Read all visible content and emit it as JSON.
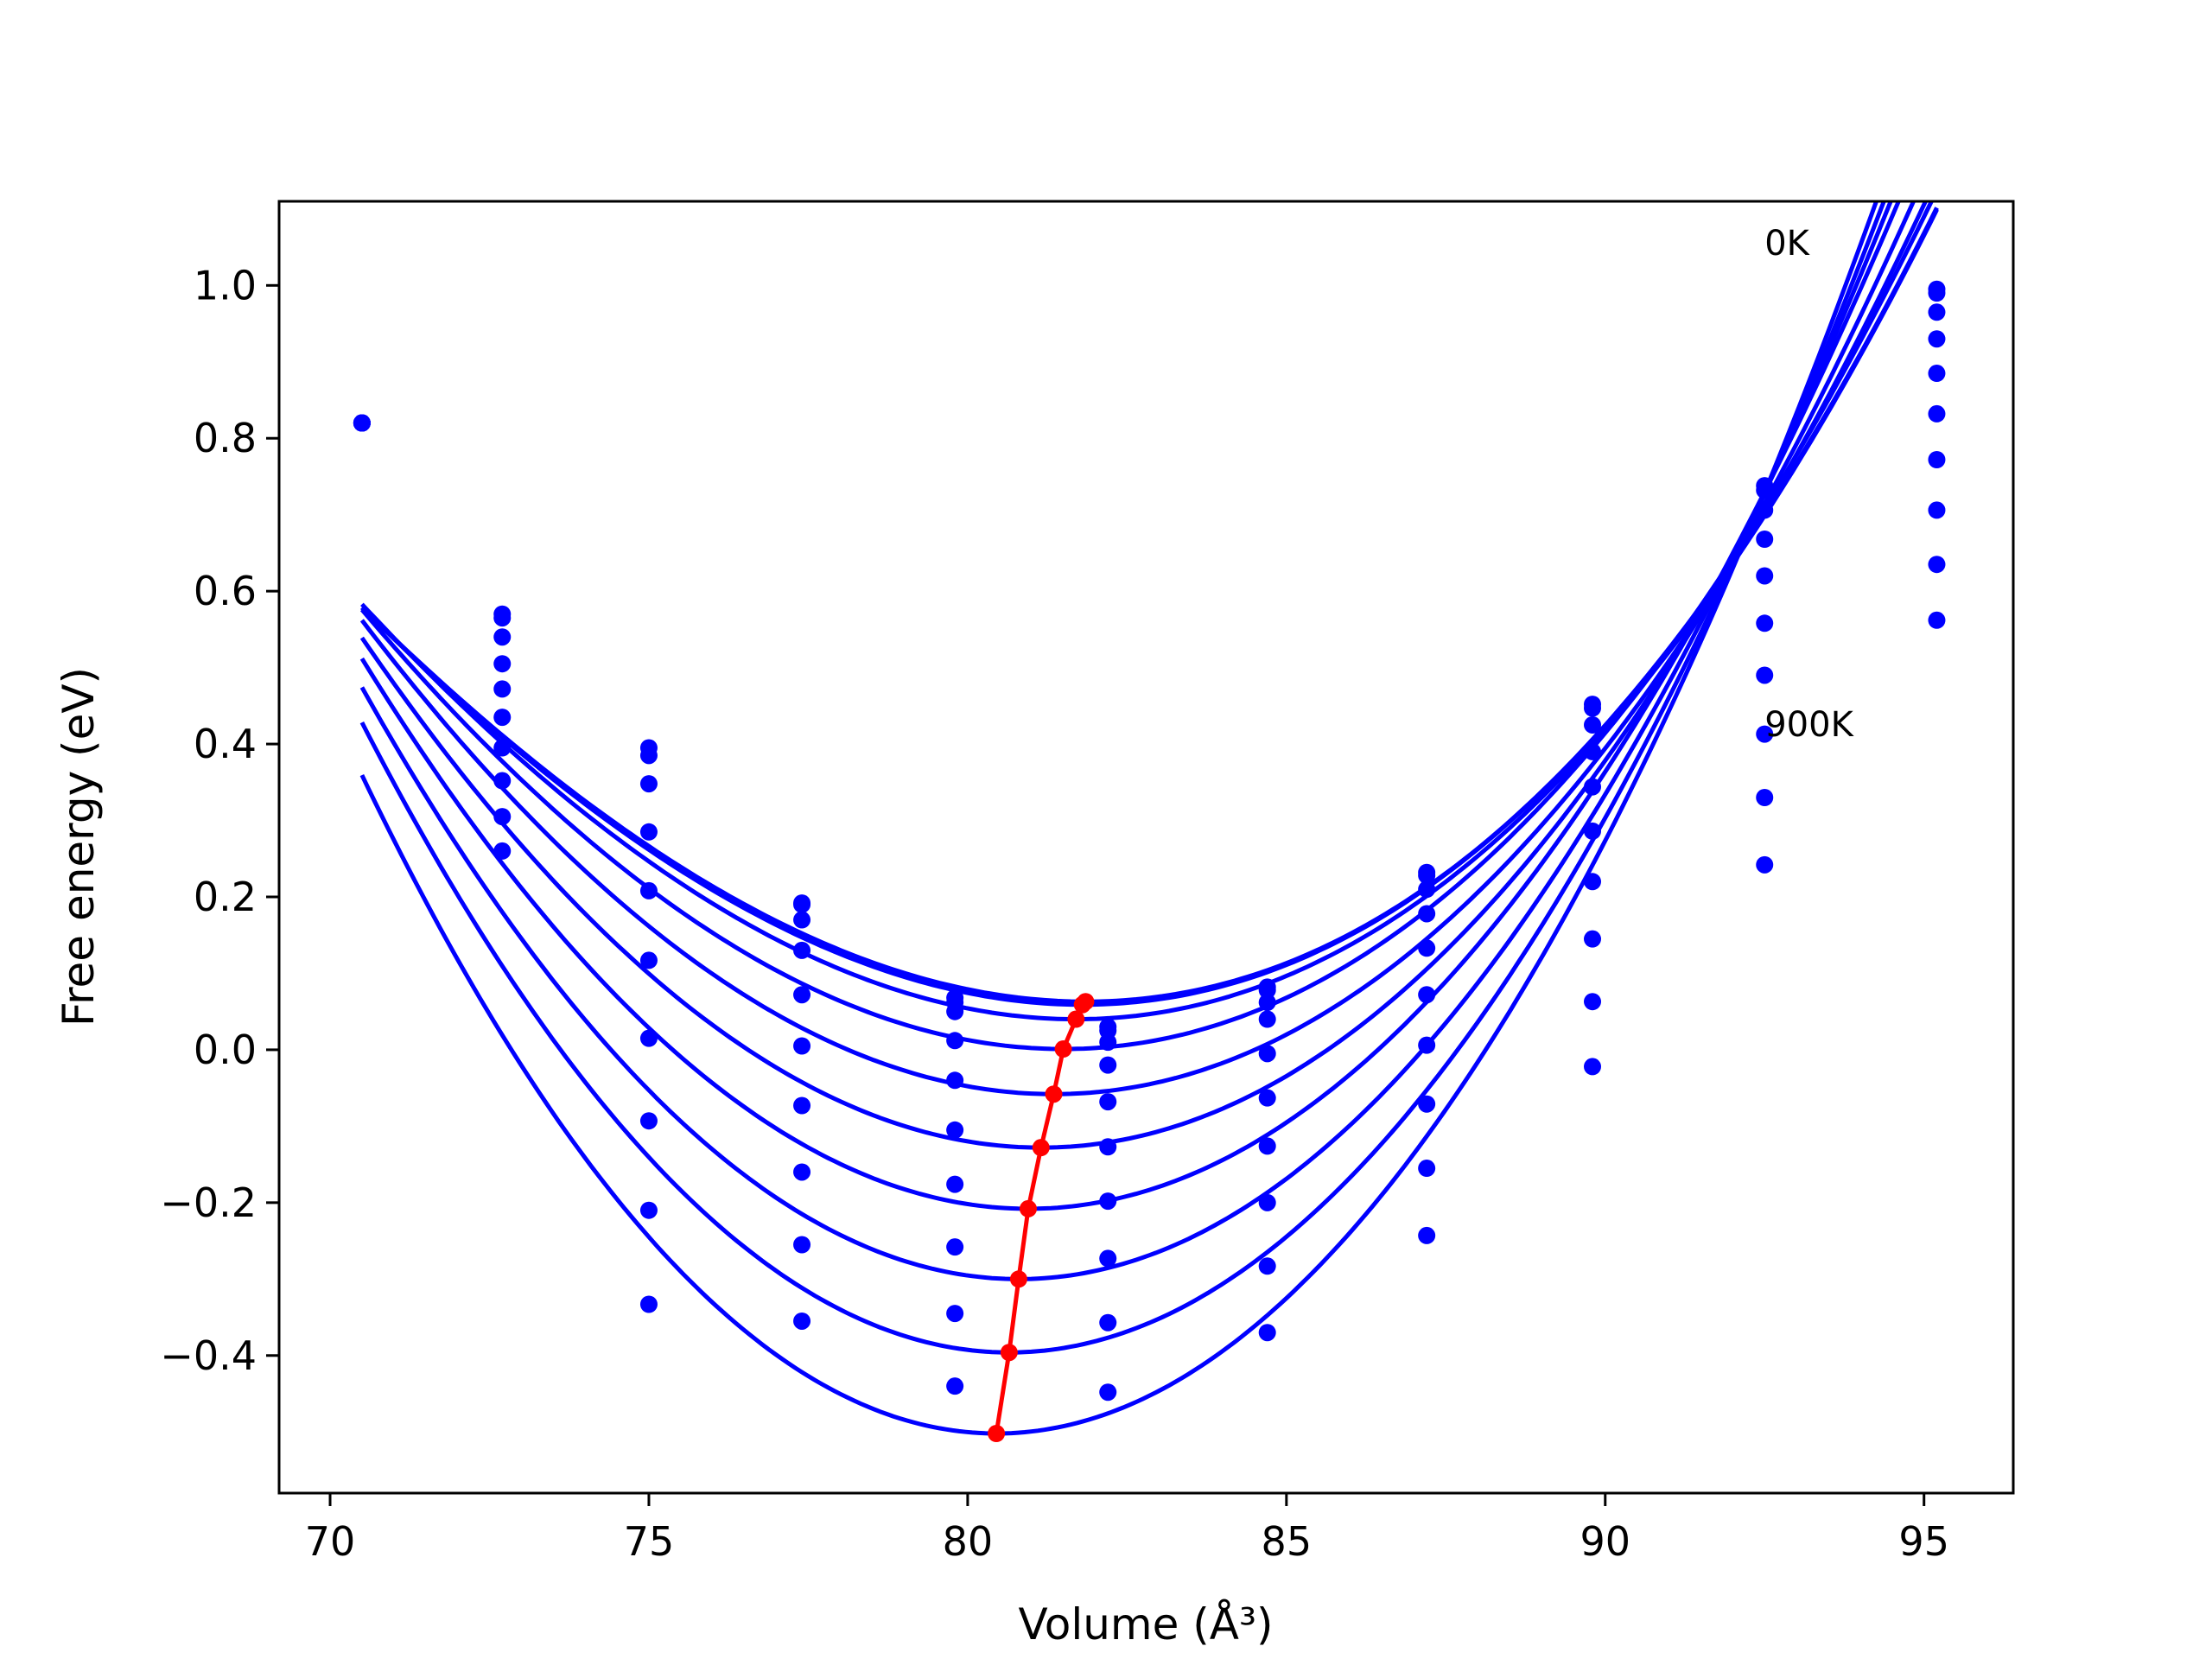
{
  "chart_data": {
    "type": "scatter",
    "title": "",
    "xlabel": "Volume (Å³)",
    "ylabel": "Free energy (eV)",
    "xlim": [
      69.2,
      96.4
    ],
    "ylim": [
      -0.58,
      1.11
    ],
    "xticks": [
      70,
      75,
      80,
      85,
      90,
      95
    ],
    "xtick_labels": [
      "70",
      "75",
      "80",
      "85",
      "90",
      "95"
    ],
    "yticks": [
      -0.4,
      -0.2,
      0.0,
      0.2,
      0.4,
      0.6,
      0.8,
      1.0
    ],
    "ytick_labels": [
      "−0.4",
      "−0.2",
      "0.0",
      "0.2",
      "0.4",
      "0.6",
      "0.8",
      "1.0"
    ],
    "grid": false,
    "annotations": [
      {
        "text": "0K",
        "x": 92.5,
        "y": 1.04
      },
      {
        "text": "900K",
        "x": 92.5,
        "y": 0.41
      }
    ],
    "colors": {
      "fit_curves": "#0000ff",
      "points": "#0000ff",
      "minimum_path": "#ff0000",
      "axes": "#000000"
    },
    "sample_volumes": [
      70.5,
      72.7,
      75.0,
      77.4,
      79.8,
      82.2,
      84.7,
      87.2,
      89.8,
      92.5,
      95.2
    ],
    "fit_x_range": [
      70.5,
      95.2
    ],
    "series": [
      {
        "V0": 81.85,
        "F0": 0.063,
        "a": 0.00484,
        "b": 7.4e-05,
        "points": [
          0.82,
          0.565,
          0.395,
          0.19,
          0.068,
          0.03,
          0.082,
          0.232,
          0.452,
          0.738,
          0.995
        ]
      },
      {
        "V0": 81.8,
        "F0": 0.059,
        "a": 0.00486,
        "b": 7e-05,
        "points": [
          0.82,
          0.57,
          0.385,
          0.192,
          0.062,
          0.025,
          0.078,
          0.228,
          0.447,
          0.732,
          0.99
        ]
      },
      {
        "V0": 81.7,
        "F0": 0.04,
        "a": 0.005,
        "b": 6e-05,
        "points": [
          0.82,
          0.54,
          0.348,
          0.17,
          0.05,
          0.01,
          0.062,
          0.21,
          0.425,
          0.706,
          0.965
        ]
      },
      {
        "V0": 81.5,
        "F0": 0.001,
        "a": 0.0053,
        "b": 5e-05,
        "points": [
          0.82,
          0.505,
          0.285,
          0.13,
          0.012,
          -0.02,
          0.04,
          0.178,
          0.39,
          0.668,
          0.93
        ]
      },
      {
        "V0": 81.35,
        "F0": -0.058,
        "a": 0.0057,
        "b": 4e-05,
        "points": [
          0.82,
          0.472,
          0.208,
          0.072,
          -0.04,
          -0.068,
          -0.005,
          0.133,
          0.344,
          0.62,
          0.885
        ]
      },
      {
        "V0": 81.15,
        "F0": -0.128,
        "a": 0.0062,
        "b": 3e-05,
        "points": [
          0.82,
          0.435,
          0.117,
          0.005,
          -0.105,
          -0.127,
          -0.063,
          0.072,
          0.286,
          0.558,
          0.832
        ]
      },
      {
        "V0": 80.95,
        "F0": -0.208,
        "a": 0.0068,
        "b": 2e-05,
        "points": [
          0.82,
          0.395,
          0.015,
          -0.073,
          -0.176,
          -0.198,
          -0.126,
          0.006,
          0.22,
          0.49,
          0.772
        ]
      },
      {
        "V0": 80.8,
        "F0": -0.3,
        "a": 0.0074,
        "b": 1e-05,
        "points": [
          0.82,
          0.352,
          -0.093,
          -0.16,
          -0.258,
          -0.273,
          -0.2,
          -0.071,
          0.145,
          0.413,
          0.706
        ]
      },
      {
        "V0": 80.65,
        "F0": -0.396,
        "a": 0.008,
        "b": 0.0,
        "points": [
          0.82,
          0.305,
          -0.21,
          -0.255,
          -0.345,
          -0.357,
          -0.283,
          -0.155,
          0.063,
          0.33,
          0.635
        ]
      },
      {
        "V0": 80.45,
        "F0": -0.502,
        "a": 0.0086,
        "b": -1e-05,
        "points": [
          0.82,
          0.26,
          -0.333,
          -0.355,
          -0.44,
          -0.448,
          -0.37,
          -0.243,
          -0.022,
          0.242,
          0.562
        ]
      }
    ],
    "minimum_path": {
      "x": [
        81.85,
        81.8,
        81.7,
        81.5,
        81.35,
        81.15,
        80.95,
        80.8,
        80.65,
        80.45
      ],
      "y": [
        0.063,
        0.059,
        0.04,
        0.001,
        -0.058,
        -0.128,
        -0.208,
        -0.3,
        -0.396,
        -0.502
      ]
    }
  }
}
